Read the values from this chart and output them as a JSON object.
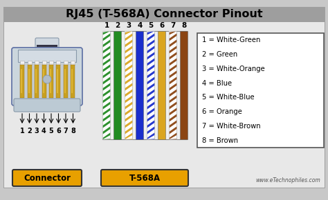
{
  "title": "RJ45 (T-568A) Connector Pinout",
  "title_bg": "#9e9e9e",
  "bg_color": "#c8c8c8",
  "inner_bg": "#d4d4d4",
  "legend_entries": [
    "1 = White-Green",
    "2 = Green",
    "3 = White-Orange",
    "4 = Blue",
    "5 = White-Blue",
    "6 = Orange",
    "7 = White-Brown",
    "8 = Brown"
  ],
  "wire_base_colors": [
    "#228B22",
    "#228B22",
    "#DAA520",
    "#1a2ecc",
    "#1a2ecc",
    "#DAA520",
    "#8B4513",
    "#8B4513"
  ],
  "wire_striped": [
    true,
    false,
    true,
    false,
    true,
    false,
    true,
    false
  ],
  "wire_labels": [
    "1",
    "2",
    "3",
    "4",
    "5",
    "6",
    "7",
    "8"
  ],
  "connector_label": "Connector",
  "standard_label": "T-568A",
  "label_bg": "#E8A000",
  "label_border": "#333333",
  "website": "www.eTechnophiles.com",
  "legend_box_color": "#ffffff",
  "legend_border": "#555555"
}
